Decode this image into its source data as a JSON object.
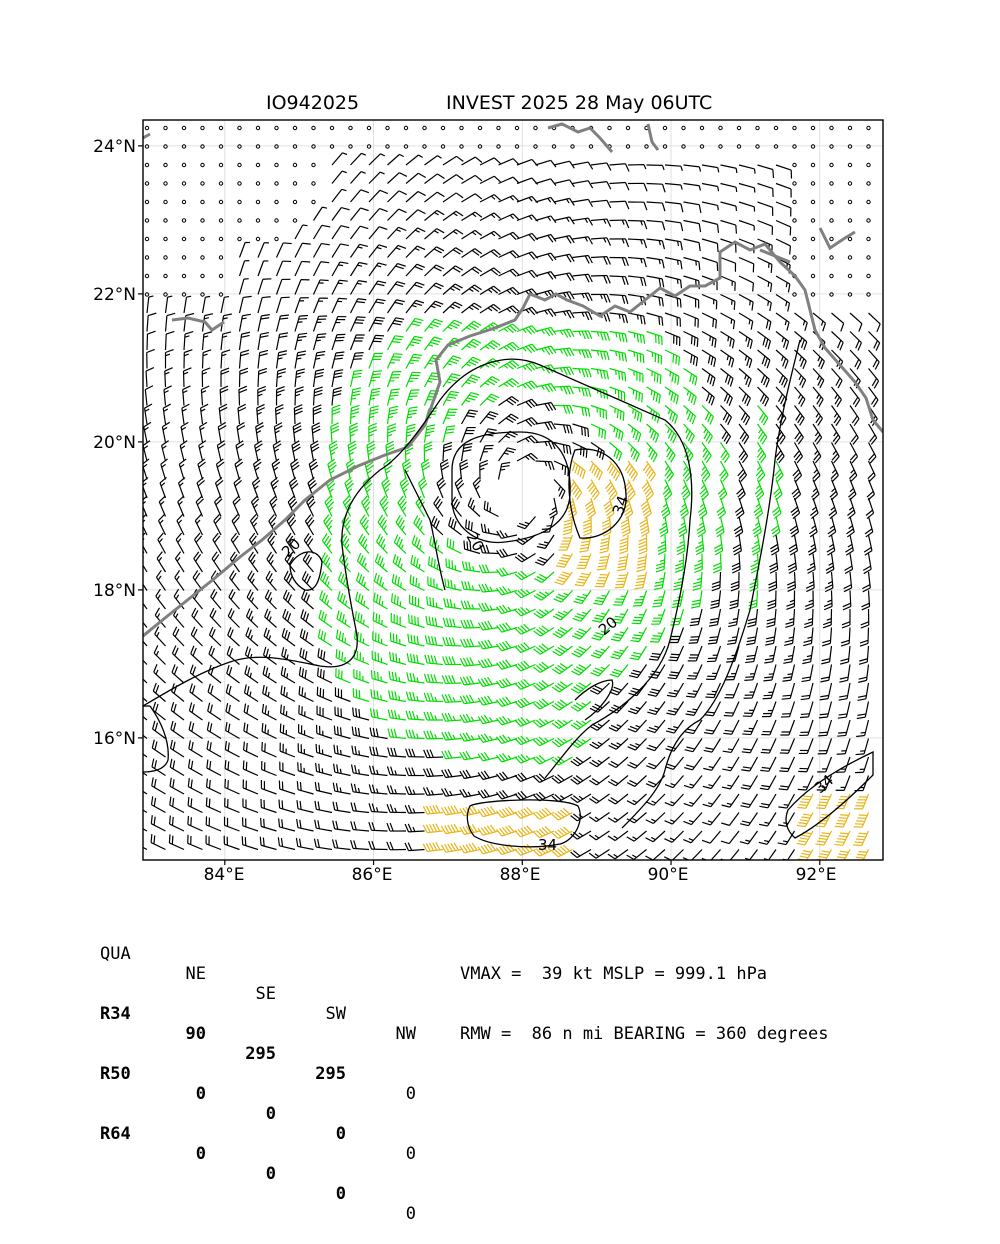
{
  "header": {
    "storm_id": "IO942025",
    "title": "INVEST 2025 28 May 06UTC"
  },
  "axes": {
    "lat_labels": [
      "24°N",
      "22°N",
      "20°N",
      "18°N",
      "16°N"
    ],
    "lon_labels": [
      "84°E",
      "86°E",
      "88°E",
      "90°E",
      "92°E"
    ],
    "lon_range": [
      82.9,
      92.85
    ],
    "lat_range": [
      14.35,
      24.35
    ],
    "grid": true
  },
  "map": {
    "wind_colors": {
      "lt34": "#000000",
      "34to50": "#00dd00",
      "50to64": "#e8b418"
    },
    "coastline_color": "#808080",
    "contour_labels": [
      "20",
      "34"
    ],
    "center": {
      "lon": 88.0,
      "lat": 19.3
    }
  },
  "table": {
    "header": [
      "QUA",
      "NE",
      "SE",
      "SW",
      "NW"
    ],
    "rows": [
      [
        "R34",
        "90",
        "295",
        "295",
        "0"
      ],
      [
        "R50",
        "0",
        "0",
        "0",
        "0"
      ],
      [
        "R64",
        "0",
        "0",
        "0",
        "0"
      ]
    ]
  },
  "stats": {
    "line1": "VMAX =  39 kt MSLP = 999.1 hPa",
    "line2": "RMW =  86 n mi BEARING = 360 degrees"
  }
}
